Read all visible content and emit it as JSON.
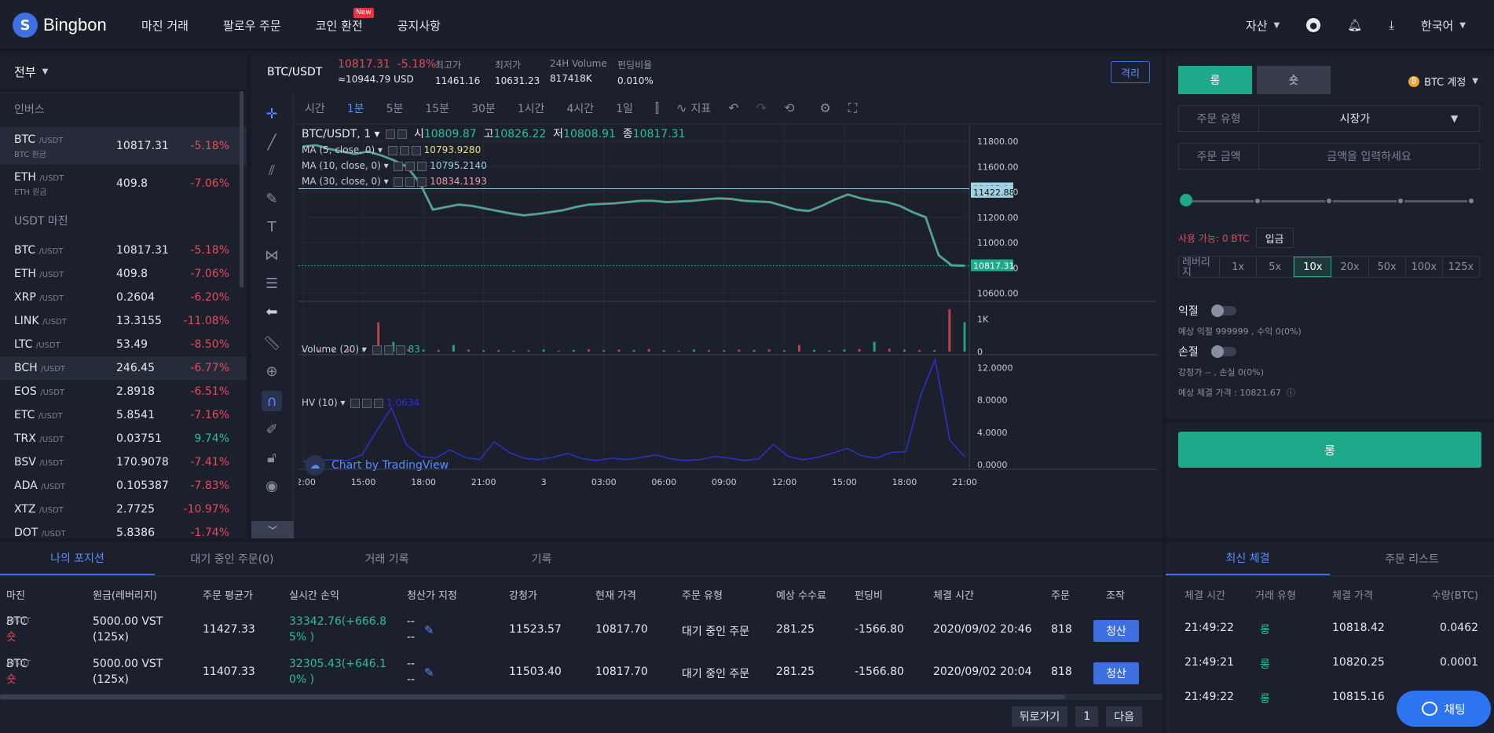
{
  "header": {
    "brand": "Bingbon",
    "nav": [
      "마진 거래",
      "팔로우 주문",
      "코인 환전",
      "공지사항"
    ],
    "new_badge": "New",
    "assets": "자산",
    "language": "한국어"
  },
  "markets": {
    "filter": "전부",
    "inverse_label": "인버스",
    "inverse": [
      {
        "sym": "BTC",
        "quote": "/USDT",
        "sub": "BTC 원금",
        "price": "10817.31",
        "chg": "-5.18%",
        "dir": "neg"
      },
      {
        "sym": "ETH",
        "quote": "/USDT",
        "sub": "ETH 원금",
        "price": "409.8",
        "chg": "-7.06%",
        "dir": "neg"
      }
    ],
    "usdt_label": "USDT 마진",
    "usdt": [
      {
        "sym": "BTC",
        "quote": "/USDT",
        "price": "10817.31",
        "chg": "-5.18%",
        "dir": "neg"
      },
      {
        "sym": "ETH",
        "quote": "/USDT",
        "price": "409.8",
        "chg": "-7.06%",
        "dir": "neg"
      },
      {
        "sym": "XRP",
        "quote": "/USDT",
        "price": "0.2604",
        "chg": "-6.20%",
        "dir": "neg"
      },
      {
        "sym": "LINK",
        "quote": "/USDT",
        "price": "13.3155",
        "chg": "-11.08%",
        "dir": "neg"
      },
      {
        "sym": "LTC",
        "quote": "/USDT",
        "price": "53.49",
        "chg": "-8.50%",
        "dir": "neg"
      },
      {
        "sym": "BCH",
        "quote": "/USDT",
        "price": "246.45",
        "chg": "-6.77%",
        "dir": "neg"
      },
      {
        "sym": "EOS",
        "quote": "/USDT",
        "price": "2.8918",
        "chg": "-6.51%",
        "dir": "neg"
      },
      {
        "sym": "ETC",
        "quote": "/USDT",
        "price": "5.8541",
        "chg": "-7.16%",
        "dir": "neg"
      },
      {
        "sym": "TRX",
        "quote": "/USDT",
        "price": "0.03751",
        "chg": "9.74%",
        "dir": "pos"
      },
      {
        "sym": "BSV",
        "quote": "/USDT",
        "price": "170.9078",
        "chg": "-7.41%",
        "dir": "neg"
      },
      {
        "sym": "ADA",
        "quote": "/USDT",
        "price": "0.105387",
        "chg": "-7.83%",
        "dir": "neg"
      },
      {
        "sym": "XTZ",
        "quote": "/USDT",
        "price": "2.7725",
        "chg": "-10.97%",
        "dir": "neg"
      },
      {
        "sym": "DOT",
        "quote": "/USDT",
        "price": "5.8386",
        "chg": "-1.74%",
        "dir": "neg"
      }
    ]
  },
  "ticker": {
    "symbol": "BTC/USDT",
    "price": "10817.31",
    "change": "-5.18%",
    "usd": "≈10944.79 USD",
    "high_label": "최고가",
    "high": "11461.16",
    "low_label": "최저가",
    "low": "10631.23",
    "vol_label": "24H Volume",
    "vol": "817418K",
    "fund_label": "펀딩비율",
    "fund": "0.010%",
    "mode_btn": "격리"
  },
  "intervals": [
    "시간",
    "1분",
    "5분",
    "15분",
    "30분",
    "1시간",
    "4시간",
    "1일"
  ],
  "indicator_label": "지표",
  "chart_legend": {
    "symbol": "BTC/USDT, 1",
    "o_label": "시",
    "o": "10809.87",
    "h_label": "고",
    "h": "10826.22",
    "l_label": "저",
    "l": "10808.91",
    "c_label": "종",
    "c": "10817.31",
    "ma5": "MA (5, close, 0)",
    "ma5_val": "10793.9280",
    "ma10": "MA (10, close, 0)",
    "ma10_val": "10795.2140",
    "ma30": "MA (30, close, 0)",
    "ma30_val": "10834.1193",
    "volume": "Volume (20)",
    "volume_val": "83",
    "hv": "HV (10)",
    "hv_val": "1.0634",
    "tv_badge": "Chart by TradingView"
  },
  "chart_data": {
    "type": "line",
    "x_ticks": [
      "12:00",
      "15:00",
      "18:00",
      "21:00",
      "3",
      "03:00",
      "06:00",
      "09:00",
      "12:00",
      "15:00",
      "18:00",
      "21:00"
    ],
    "price_ticks": [
      "11800.00",
      "11600.00",
      "11400.00",
      "11200.00",
      "11000.00",
      "10800.00",
      "10600.00"
    ],
    "price_ylim": [
      10560,
      11900
    ],
    "price_marks": [
      "11425.20",
      "11422.88",
      "10817.31"
    ],
    "price": [
      11760,
      11770,
      11740,
      11720,
      11700,
      11720,
      11690,
      11650,
      11600,
      11470,
      11260,
      11280,
      11300,
      11290,
      11270,
      11250,
      11230,
      11215,
      11225,
      11240,
      11255,
      11280,
      11300,
      11305,
      11310,
      11320,
      11330,
      11330,
      11320,
      11325,
      11330,
      11340,
      11350,
      11345,
      11330,
      11325,
      11320,
      11290,
      11260,
      11250,
      11290,
      11340,
      11380,
      11350,
      11330,
      11320,
      11290,
      11240,
      11200,
      10900,
      10820,
      10817
    ],
    "volume_ticks": [
      "1K",
      "0"
    ],
    "volume_ylim": [
      0,
      1400
    ],
    "volume": [
      40,
      60,
      50,
      70,
      80,
      900,
      300,
      80,
      60,
      50,
      200,
      60,
      40,
      50,
      30,
      40,
      60,
      30,
      50,
      70,
      40,
      60,
      50,
      80,
      40,
      30,
      60,
      50,
      40,
      60,
      50,
      70,
      40,
      200,
      50,
      40,
      60,
      80,
      300,
      90,
      60,
      50,
      40,
      1300,
      900
    ],
    "hv_ticks": [
      "12.0000",
      "8.0000",
      "4.0000",
      "0.0000"
    ],
    "hv_ylim": [
      0,
      13
    ],
    "hv": [
      0.4,
      0.5,
      0.6,
      0.5,
      1.2,
      4.2,
      7.0,
      2.5,
      1.0,
      0.8,
      1.8,
      0.9,
      0.6,
      2.8,
      1.5,
      0.8,
      0.6,
      0.9,
      1.4,
      0.7,
      0.5,
      0.8,
      0.6,
      0.9,
      1.2,
      0.7,
      0.5,
      0.6,
      1.0,
      0.8,
      0.5,
      0.7,
      2.5,
      1.0,
      0.6,
      0.9,
      1.4,
      2.0,
      1.1,
      0.8,
      1.5,
      1.6,
      8.5,
      13.0,
      3.0,
      1.0
    ]
  },
  "order": {
    "long": "롱",
    "short": "숏",
    "account": "BTC 계정",
    "type_label": "주문 유형",
    "type_value": "시장가",
    "amount_label": "주문 금액",
    "amount_placeholder": "금액을 입력하세요",
    "available": "사용 가능: 0 BTC",
    "deposit": "입금",
    "leverage_label": "레버리지",
    "leverage": [
      "1x",
      "5x",
      "10x",
      "20x",
      "50x",
      "100x",
      "125x"
    ],
    "tp_label": "익절",
    "tp_note": "예상 익절 999999 , 수익 0(0%)",
    "sl_label": "손절",
    "sl_note": "강청가 -- , 손실 0(0%)",
    "est_price": "예상 체결 가격 : 10821.67",
    "submit": "롱"
  },
  "positions": {
    "tabs": [
      "나의 포지션",
      "대기 중인 주문(0)",
      "거래 기록",
      "기록"
    ],
    "headers": [
      "마진",
      "원금(레버리지)",
      "주문 평균가",
      "실시간 손익",
      "청산가 지정",
      "강청가",
      "현재 가격",
      "주문 유형",
      "예상 수수료",
      "펀딩비",
      "체결 시간",
      "주문",
      "조작"
    ],
    "rows": [
      {
        "sym": "BTC",
        "quote": "/USDT",
        "side": "숏",
        "principal": "5000.00  VST",
        "lev": "(125x)",
        "avg": "11427.33",
        "pnl1": "33342.76(+666.8",
        "pnl2": "5% )",
        "liq_set": "--",
        "liq": "11523.57",
        "cur": "10817.70",
        "otype": "대기 중인 주문",
        "fee": "281.25",
        "fund": "-1566.80",
        "time": "2020/09/02 20:46",
        "order": "818",
        "action": "청산"
      },
      {
        "sym": "BTC",
        "quote": "/USDT",
        "side": "숏",
        "principal": "5000.00  VST",
        "lev": "(125x)",
        "avg": "11407.33",
        "pnl1": "32305.43(+646.1",
        "pnl2": "0% )",
        "liq_set": "--",
        "liq": "11503.40",
        "cur": "10817.70",
        "otype": "대기 중인 주문",
        "fee": "281.25",
        "fund": "-1566.80",
        "time": "2020/09/02 20:04",
        "order": "818",
        "action": "청산"
      }
    ],
    "prev": "뒤로가기",
    "page": "1",
    "next": "다음"
  },
  "trades": {
    "tabs": [
      "최신 체결",
      "주문 리스트"
    ],
    "headers": [
      "체결 시간",
      "거래 유형",
      "체결 가격",
      "수량(BTC)"
    ],
    "rows": [
      {
        "time": "21:49:22",
        "side": "롱",
        "price": "10818.42",
        "qty": "0.0462"
      },
      {
        "time": "21:49:21",
        "side": "롱",
        "price": "10820.25",
        "qty": "0.0001"
      },
      {
        "time": "21:49:22",
        "side": "롱",
        "price": "10815.16",
        "qty": ""
      }
    ]
  },
  "chat": "채팅",
  "colors": {
    "accent": "#3d6fe0",
    "long": "#1ea98a",
    "down": "#e6495a",
    "up": "#2bbf94"
  }
}
